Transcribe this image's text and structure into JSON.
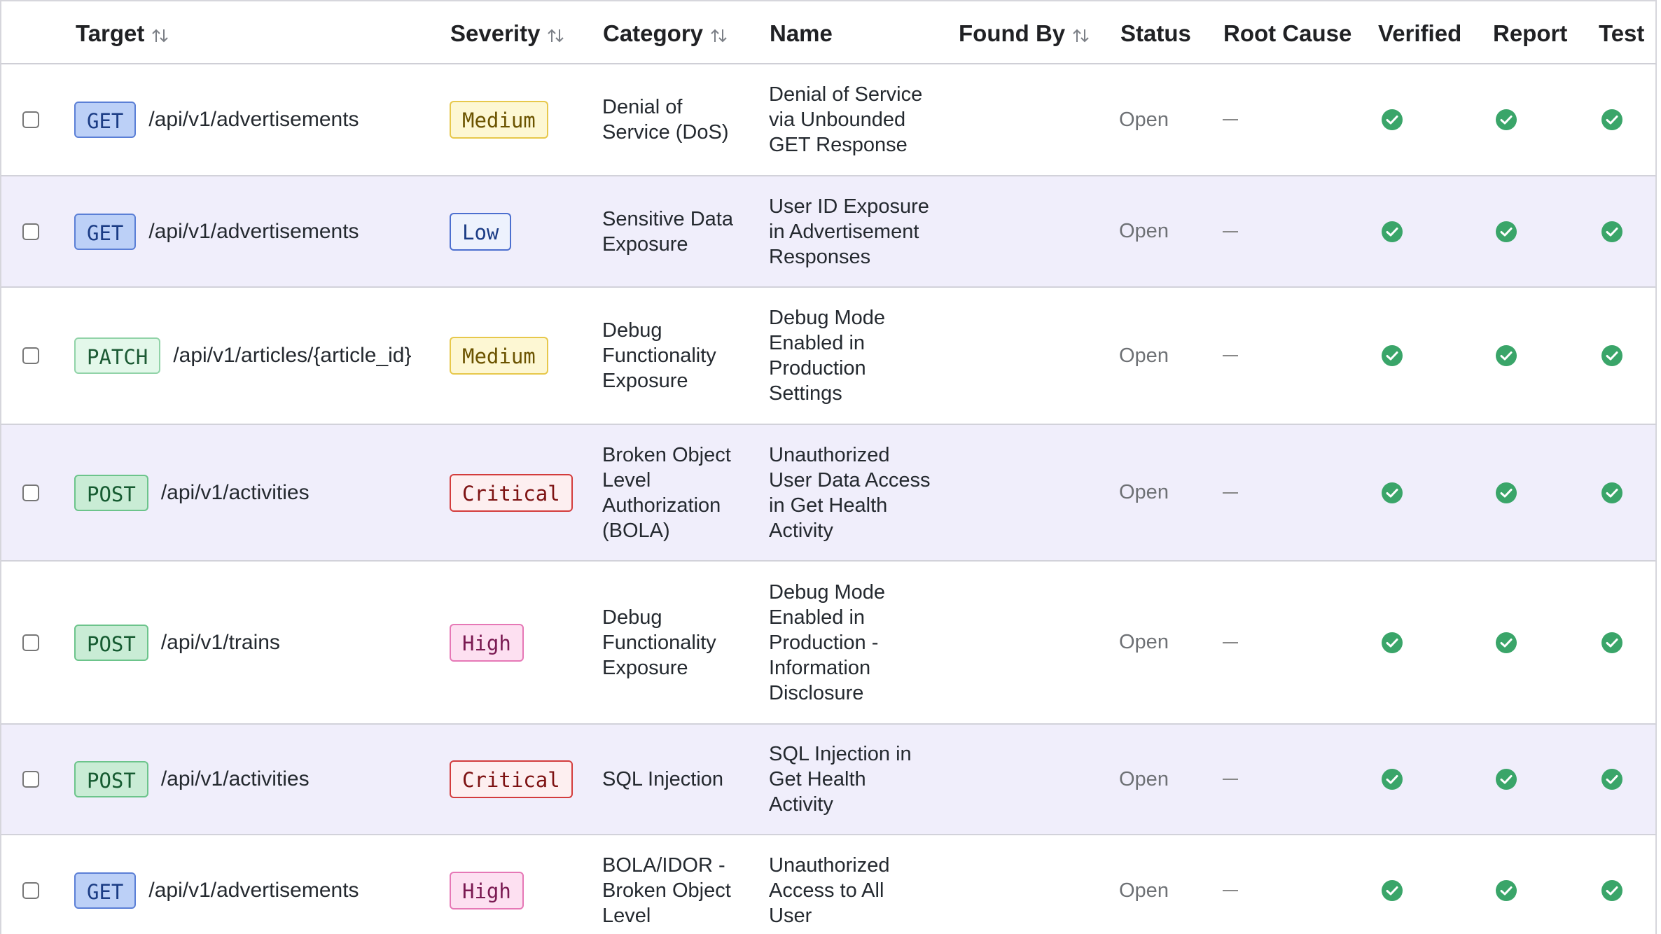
{
  "columns": {
    "target": "Target",
    "severity": "Severity",
    "category": "Category",
    "name": "Name",
    "found_by": "Found By",
    "status": "Status",
    "root_cause": "Root Cause",
    "verified": "Verified",
    "report": "Report",
    "test": "Test"
  },
  "rows": [
    {
      "method": "GET",
      "path": "/api/v1/advertisements",
      "severity": "Medium",
      "category": [
        "Denial of",
        "Service (DoS)"
      ],
      "name": [
        "Denial of Service",
        "via Unbounded",
        "GET Response"
      ],
      "status": "Open",
      "root_cause": "—"
    },
    {
      "method": "GET",
      "path": "/api/v1/advertisements",
      "severity": "Low",
      "category": [
        "Sensitive Data",
        "Exposure"
      ],
      "name": [
        "User ID Exposure",
        "in Advertisement",
        "Responses"
      ],
      "status": "Open",
      "root_cause": "—"
    },
    {
      "method": "PATCH",
      "path": "/api/v1/articles/{article_id}",
      "severity": "Medium",
      "category": [
        "Debug",
        "Functionality",
        "Exposure"
      ],
      "name": [
        "Debug Mode",
        "Enabled in",
        "Production",
        "Settings"
      ],
      "status": "Open",
      "root_cause": "—"
    },
    {
      "method": "POST",
      "path": "/api/v1/activities",
      "severity": "Critical",
      "category": [
        "Broken Object",
        "Level",
        "Authorization",
        "(BOLA)"
      ],
      "name": [
        "Unauthorized",
        "User Data Access",
        "in Get Health",
        "Activity"
      ],
      "status": "Open",
      "root_cause": "—"
    },
    {
      "method": "POST",
      "path": "/api/v1/trains",
      "severity": "High",
      "category": [
        "Debug",
        "Functionality",
        "Exposure"
      ],
      "name": [
        "Debug Mode",
        "Enabled in",
        "Production -",
        "Information",
        "Disclosure"
      ],
      "status": "Open",
      "root_cause": "—"
    },
    {
      "method": "POST",
      "path": "/api/v1/activities",
      "severity": "Critical",
      "category": [
        "SQL Injection"
      ],
      "name": [
        "SQL Injection in",
        "Get Health",
        "Activity"
      ],
      "status": "Open",
      "root_cause": "—"
    },
    {
      "method": "GET",
      "path": "/api/v1/advertisements",
      "severity": "High",
      "category": [
        "BOLA/IDOR -",
        "Broken Object",
        "Level"
      ],
      "name": [
        "Unauthorized",
        "Access to All",
        "User"
      ],
      "status": "Open",
      "root_cause": "—"
    }
  ],
  "colors": {
    "row_alt_bg": "#f0eefb",
    "check_green": "#3aa569"
  },
  "icons": {
    "sort": "sort-arrows-icon",
    "verified": "check-circle-icon"
  }
}
